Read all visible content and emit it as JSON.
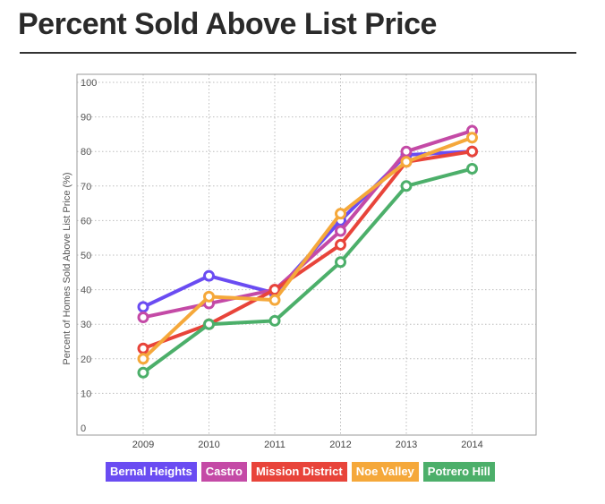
{
  "page": {
    "title": "Percent Sold Above List Price"
  },
  "chart_data": {
    "type": "line",
    "title": "Percent Sold Above List Price",
    "xlabel": "",
    "ylabel": "Percent of Homes Sold Above List Price (%)",
    "x": [
      2009,
      2010,
      2011,
      2012,
      2013,
      2014
    ],
    "x_tick_labels": [
      "2009",
      "2010",
      "2011",
      "2012",
      "2013",
      "2014"
    ],
    "y_tick_labels": [
      "0",
      "10",
      "20",
      "30",
      "40",
      "50",
      "60",
      "70",
      "80",
      "90",
      "100"
    ],
    "ylim": [
      0,
      100
    ],
    "grid": true,
    "legend_position": "bottom",
    "series": [
      {
        "name": "Bernal Heights",
        "color": "#6a4cf2",
        "values": [
          35,
          44,
          39,
          60,
          79,
          80
        ]
      },
      {
        "name": "Castro",
        "color": "#c44aa6",
        "values": [
          32,
          36,
          40,
          57,
          80,
          86
        ]
      },
      {
        "name": "Mission District",
        "color": "#e8443a",
        "values": [
          23,
          30,
          40,
          53,
          77,
          80
        ]
      },
      {
        "name": "Noe Valley",
        "color": "#f5a83a",
        "values": [
          20,
          38,
          37,
          62,
          77,
          84
        ]
      },
      {
        "name": "Potrero Hill",
        "color": "#4caf6a",
        "values": [
          16,
          30,
          31,
          48,
          70,
          75
        ]
      }
    ]
  }
}
